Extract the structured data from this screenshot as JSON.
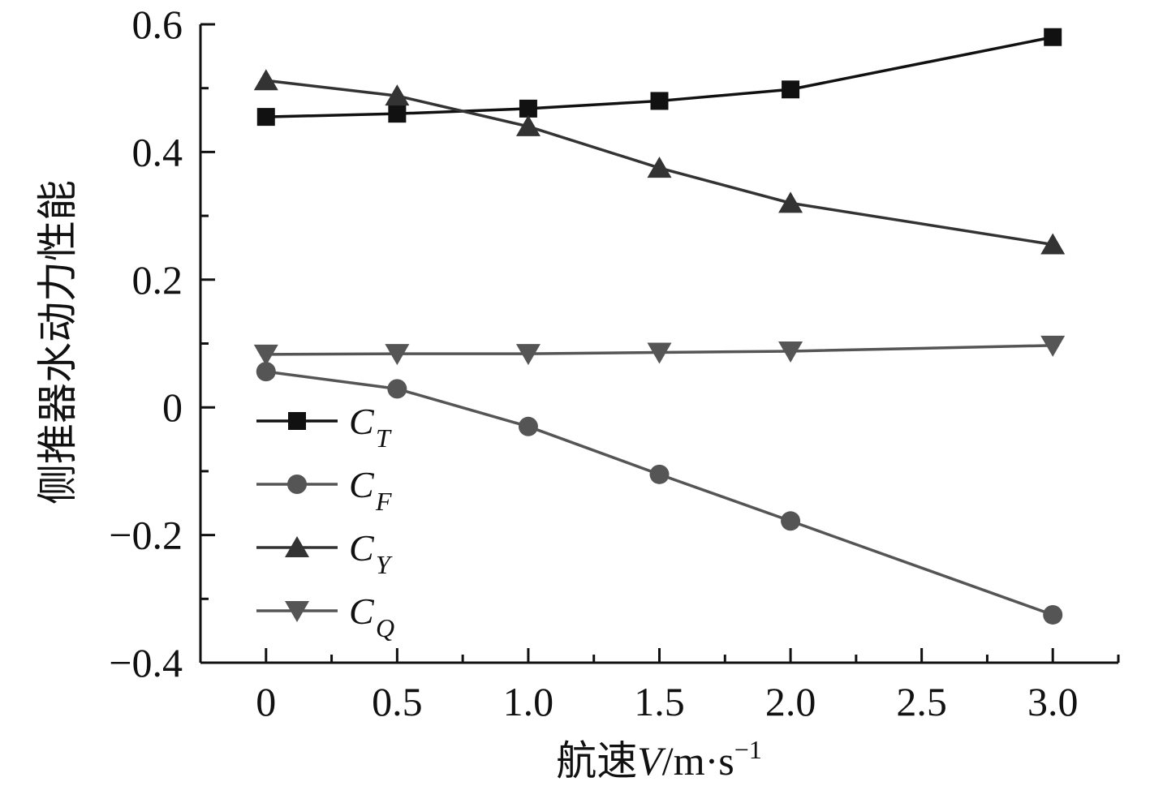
{
  "chart_data": {
    "type": "line",
    "xlabel": {
      "prefix": "航速",
      "var": "V",
      "unit": "/m·s",
      "exp": "−1"
    },
    "ylabel": "侧推器水动力性能",
    "xlim": [
      -0.25,
      3.25
    ],
    "ylim": [
      -0.4,
      0.6
    ],
    "xticks": [
      0,
      0.5,
      1.0,
      1.5,
      2.0,
      2.5,
      3.0
    ],
    "xtick_labels": [
      "0",
      "0.5",
      "1.0",
      "1.5",
      "2.0",
      "2.5",
      "3.0"
    ],
    "yticks": [
      -0.4,
      -0.2,
      0,
      0.2,
      0.4,
      0.6
    ],
    "ytick_labels": [
      "−0.4",
      "−0.2",
      "0",
      "0.2",
      "0.4",
      "0.6"
    ],
    "grid": false,
    "legend_position": "lower-left",
    "x": [
      0,
      0.5,
      1.0,
      1.5,
      2.0,
      3.0
    ],
    "series": [
      {
        "name": "C",
        "sub": "T",
        "marker": "square",
        "color": "#111111",
        "values": [
          0.455,
          0.46,
          0.468,
          0.48,
          0.498,
          0.58
        ]
      },
      {
        "name": "C",
        "sub": "F",
        "marker": "circle",
        "color": "#555555",
        "values": [
          0.056,
          0.029,
          -0.03,
          -0.105,
          -0.178,
          -0.325
        ]
      },
      {
        "name": "C",
        "sub": "Y",
        "marker": "triangle-up",
        "color": "#333333",
        "values": [
          0.512,
          0.488,
          0.44,
          0.375,
          0.32,
          0.255
        ]
      },
      {
        "name": "C",
        "sub": "Q",
        "marker": "triangle-down",
        "color": "#555555",
        "values": [
          0.083,
          0.084,
          0.084,
          0.086,
          0.088,
          0.097
        ]
      }
    ]
  }
}
